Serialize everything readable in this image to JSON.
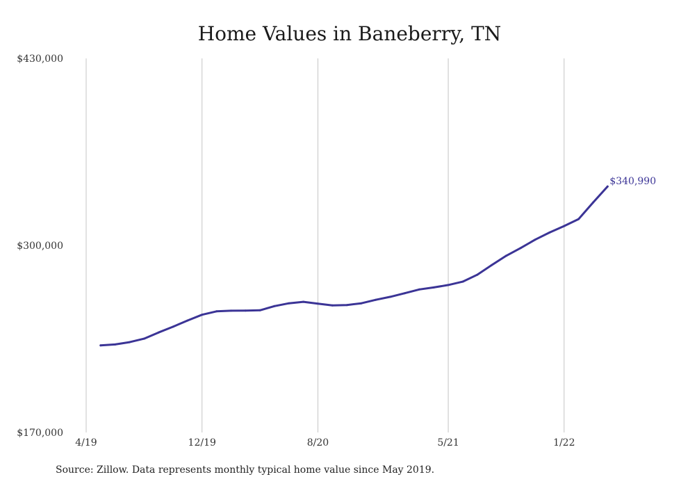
{
  "chart_data": {
    "type": "line",
    "title": "Home Values in Baneberry, TN",
    "xlabel": "",
    "ylabel": "",
    "ylim": [
      170000,
      430000
    ],
    "xlim": [
      "2019-04",
      "2022-06"
    ],
    "y_ticks": [
      {
        "value": 430000,
        "label": "$430,000"
      },
      {
        "value": 300000,
        "label": "$300,000"
      },
      {
        "value": 170000,
        "label": "$170,000"
      }
    ],
    "x_ticks": [
      {
        "x": "2019-04",
        "label": "4/19"
      },
      {
        "x": "2019-12",
        "label": "12/19"
      },
      {
        "x": "2020-08",
        "label": "8/20"
      },
      {
        "x": "2021-05",
        "label": "5/21"
      },
      {
        "x": "2022-01",
        "label": "1/22"
      }
    ],
    "grid": {
      "vertical": true,
      "horizontal": false
    },
    "series": [
      {
        "color": "#3b3496",
        "points": [
          {
            "x": "2019-05",
            "y": 230500
          },
          {
            "x": "2019-06",
            "y": 231200
          },
          {
            "x": "2019-07",
            "y": 232800
          },
          {
            "x": "2019-08",
            "y": 235200
          },
          {
            "x": "2019-09",
            "y": 239500
          },
          {
            "x": "2019-10",
            "y": 243500
          },
          {
            "x": "2019-11",
            "y": 247800
          },
          {
            "x": "2019-12",
            "y": 251800
          },
          {
            "x": "2020-01",
            "y": 254200
          },
          {
            "x": "2020-02",
            "y": 254600
          },
          {
            "x": "2020-03",
            "y": 254700
          },
          {
            "x": "2020-04",
            "y": 254900
          },
          {
            "x": "2020-05",
            "y": 257800
          },
          {
            "x": "2020-06",
            "y": 259800
          },
          {
            "x": "2020-07",
            "y": 260800
          },
          {
            "x": "2020-08",
            "y": 259500
          },
          {
            "x": "2020-09",
            "y": 258300
          },
          {
            "x": "2020-10",
            "y": 258600
          },
          {
            "x": "2020-11",
            "y": 259800
          },
          {
            "x": "2020-12",
            "y": 262200
          },
          {
            "x": "2021-01",
            "y": 264300
          },
          {
            "x": "2021-02",
            "y": 266800
          },
          {
            "x": "2021-03",
            "y": 269400
          },
          {
            "x": "2021-04",
            "y": 270800
          },
          {
            "x": "2021-05",
            "y": 272500
          },
          {
            "x": "2021-06",
            "y": 274800
          },
          {
            "x": "2021-07",
            "y": 279600
          },
          {
            "x": "2021-08",
            "y": 286300
          },
          {
            "x": "2021-09",
            "y": 292800
          },
          {
            "x": "2021-10",
            "y": 298200
          },
          {
            "x": "2021-11",
            "y": 304000
          },
          {
            "x": "2021-12",
            "y": 309000
          },
          {
            "x": "2022-01",
            "y": 313500
          },
          {
            "x": "2022-02",
            "y": 318300
          },
          {
            "x": "2022-03",
            "y": 329800
          },
          {
            "x": "2022-04",
            "y": 340990
          }
        ]
      }
    ],
    "end_label": {
      "x": "2022-04",
      "y": 340990,
      "label": "$340,990"
    }
  },
  "footer": {
    "source": "Source: Zillow. Data represents monthly typical home value since May 2019."
  }
}
